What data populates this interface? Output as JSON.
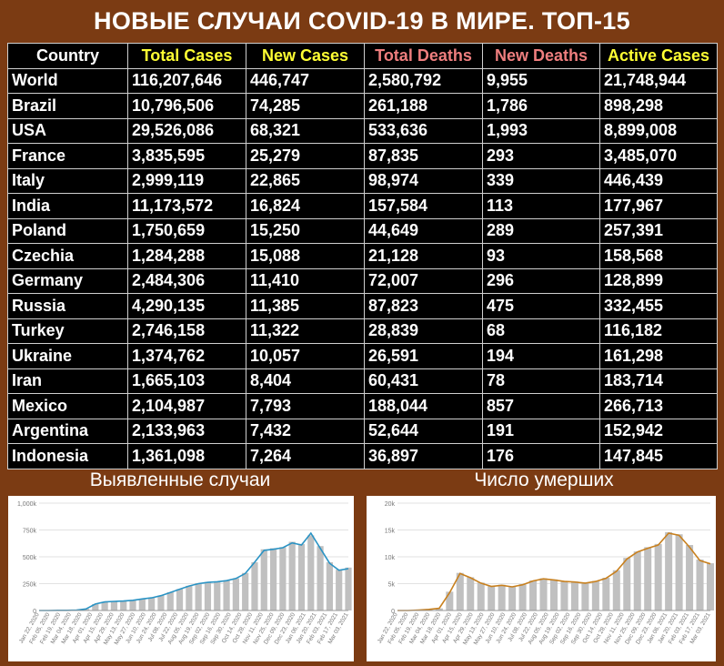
{
  "title": "НОВЫЕ СЛУЧАИ COVID-19 В МИРЕ. ТОП-15",
  "table": {
    "columns": [
      {
        "label": "Country",
        "color": "#ffffff"
      },
      {
        "label": "Total Cases",
        "color": "#ffff33"
      },
      {
        "label": "New Cases",
        "color": "#ffff33"
      },
      {
        "label": "Total Deaths",
        "color": "#ee7e7e"
      },
      {
        "label": "New Deaths",
        "color": "#ee7e7e"
      },
      {
        "label": "Active Cases",
        "color": "#ffff33"
      }
    ],
    "rows": [
      [
        "World",
        "116,207,646",
        "446,747",
        "2,580,792",
        "9,955",
        "21,748,944"
      ],
      [
        "Brazil",
        "10,796,506",
        "74,285",
        "261,188",
        "1,786",
        "898,298"
      ],
      [
        "USA",
        "29,526,086",
        "68,321",
        "533,636",
        "1,993",
        "8,899,008"
      ],
      [
        "France",
        "3,835,595",
        "25,279",
        "87,835",
        "293",
        "3,485,070"
      ],
      [
        "Italy",
        "2,999,119",
        "22,865",
        "98,974",
        "339",
        "446,439"
      ],
      [
        "India",
        "11,173,572",
        "16,824",
        "157,584",
        "113",
        "177,967"
      ],
      [
        "Poland",
        "1,750,659",
        "15,250",
        "44,649",
        "289",
        "257,391"
      ],
      [
        "Czechia",
        "1,284,288",
        "15,088",
        "21,128",
        "93",
        "158,568"
      ],
      [
        "Germany",
        "2,484,306",
        "11,410",
        "72,007",
        "296",
        "128,899"
      ],
      [
        "Russia",
        "4,290,135",
        "11,385",
        "87,823",
        "475",
        "332,455"
      ],
      [
        "Turkey",
        "2,746,158",
        "11,322",
        "28,839",
        "68",
        "116,182"
      ],
      [
        "Ukraine",
        "1,374,762",
        "10,057",
        "26,591",
        "194",
        "161,298"
      ],
      [
        "Iran",
        "1,665,103",
        "8,404",
        "60,431",
        "78",
        "183,714"
      ],
      [
        "Mexico",
        "2,104,987",
        "7,793",
        "188,044",
        "857",
        "266,713"
      ],
      [
        "Argentina",
        "2,133,963",
        "7,432",
        "52,644",
        "191",
        "152,942"
      ],
      [
        "Indonesia",
        "1,361,098",
        "7,264",
        "36,897",
        "176",
        "147,845"
      ]
    ]
  },
  "chart_data": [
    {
      "type": "bar",
      "title": "Выявленные случаи",
      "ylim": [
        0,
        1000000
      ],
      "yticks": [
        "0",
        "250k",
        "500k",
        "750k",
        "1,000k"
      ],
      "ytick_values": [
        0,
        250000,
        500000,
        750000,
        1000000
      ],
      "x_tick_labels": [
        "Jan 22, 2020",
        "Feb 05, 2020",
        "Feb 19, 2020",
        "Mar 04, 2020",
        "Mar 18, 2020",
        "Apr 01, 2020",
        "Apr 15, 2020",
        "Apr 29, 2020",
        "May 13, 2020",
        "May 27, 2020",
        "Jun 10, 2020",
        "Jun 24, 2020",
        "Jul 08, 2020",
        "Jul 22, 2020",
        "Aug 05, 2020",
        "Aug 19, 2020",
        "Sep 02, 2020",
        "Sep 16, 2020",
        "Sep 30, 2020",
        "Oct 14, 2020",
        "Oct 28, 2020",
        "Nov 11, 2020",
        "Nov 25, 2020",
        "Dec 09, 2020",
        "Dec 23, 2020",
        "Jan 06, 2021",
        "Jan 20, 2021",
        "Feb 03, 2021",
        "Feb 17, 2021",
        "Mar 03, 2021"
      ],
      "series": [
        {
          "name": "daily",
          "color": "#c0c0c0",
          "values": [
            0,
            0,
            2000,
            2500,
            3000,
            15000,
            60000,
            80000,
            85000,
            90000,
            95000,
            110000,
            120000,
            140000,
            170000,
            200000,
            230000,
            255000,
            265000,
            270000,
            280000,
            300000,
            350000,
            450000,
            570000,
            580000,
            590000,
            640000,
            620000,
            700000,
            600000,
            450000,
            380000,
            400000
          ]
        },
        {
          "name": "7-day average",
          "color": "#2a93c4",
          "values": [
            0,
            0,
            1500,
            2000,
            3000,
            14000,
            60000,
            80000,
            85000,
            88000,
            95000,
            108000,
            118000,
            138000,
            168000,
            198000,
            228000,
            250000,
            262000,
            268000,
            278000,
            298000,
            345000,
            450000,
            560000,
            570000,
            585000,
            630000,
            610000,
            720000,
            580000,
            440000,
            375000,
            390000
          ]
        }
      ]
    },
    {
      "type": "bar",
      "title": "Число умерших",
      "ylim": [
        0,
        20000
      ],
      "yticks": [
        "0",
        "5k",
        "10k",
        "15k",
        "20k"
      ],
      "ytick_values": [
        0,
        5000,
        10000,
        15000,
        20000
      ],
      "x_tick_labels": [
        "Jan 22, 2020",
        "Feb 05, 2020",
        "Feb 19, 2020",
        "Mar 04, 2020",
        "Mar 18, 2020",
        "Apr 01, 2020",
        "Apr 15, 2020",
        "Apr 29, 2020",
        "May 13, 2020",
        "May 27, 2020",
        "Jun 10, 2020",
        "Jun 24, 2020",
        "Jul 08, 2020",
        "Jul 22, 2020",
        "Aug 05, 2020",
        "Aug 19, 2020",
        "Sep 02, 2020",
        "Sep 16, 2020",
        "Sep 30, 2020",
        "Oct 14, 2020",
        "Oct 28, 2020",
        "Nov 11, 2020",
        "Nov 25, 2020",
        "Dec 09, 2020",
        "Dec 23, 2020",
        "Jan 06, 2021",
        "Jan 20, 2021",
        "Feb 03, 2021",
        "Feb 17, 2021",
        "Mar 03, 2021"
      ],
      "series": [
        {
          "name": "daily",
          "color": "#c0c0c0",
          "values": [
            0,
            0,
            100,
            200,
            400,
            3500,
            7000,
            6200,
            5200,
            4600,
            4800,
            4500,
            4900,
            5600,
            6000,
            5800,
            5500,
            5400,
            5200,
            5500,
            6100,
            7500,
            9800,
            11000,
            11800,
            12400,
            14600,
            14200,
            12200,
            9500,
            8800
          ]
        },
        {
          "name": "7-day average",
          "color": "#c8801e",
          "values": [
            0,
            0,
            80,
            200,
            400,
            3300,
            6900,
            6100,
            5100,
            4500,
            4700,
            4400,
            4800,
            5500,
            5900,
            5700,
            5400,
            5300,
            5100,
            5400,
            6000,
            7300,
            9600,
            10900,
            11600,
            12200,
            14400,
            14000,
            11800,
            9300,
            8700
          ]
        }
      ]
    }
  ],
  "charts_meta": {
    "left_title": "Выявленные случаи",
    "right_title": "Число умерших"
  }
}
